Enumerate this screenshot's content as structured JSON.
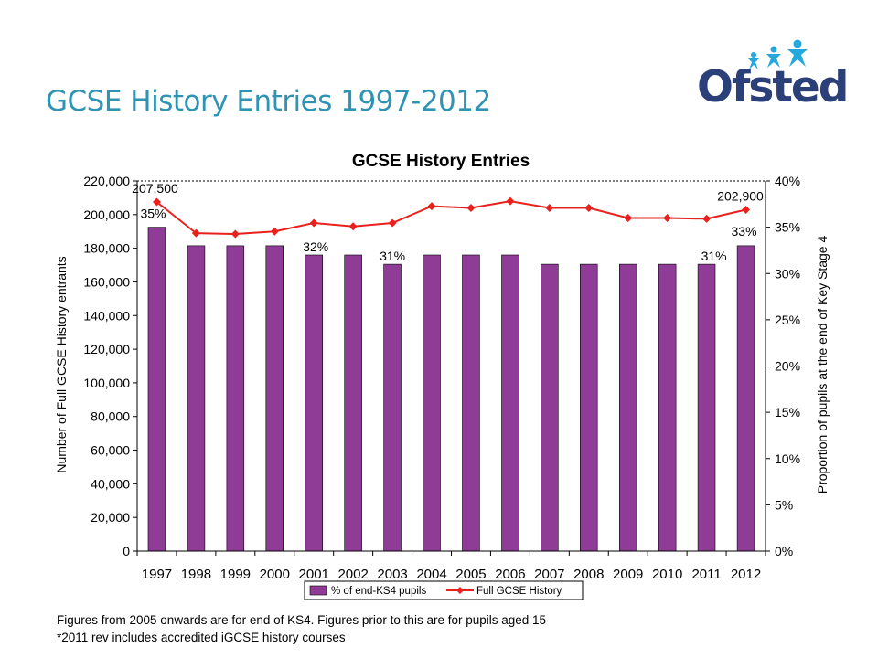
{
  "slide": {
    "title": "GCSE History Entries 1997-2012",
    "logo_text": "Ofsted",
    "footnotes": [
      "Figures from 2005 onwards are for end of KS4.  Figures prior to this are for pupils aged 15",
      "*2011 rev includes accredited iGCSE history courses"
    ]
  },
  "colors": {
    "title": "#2f93b4",
    "bar": "#8e3c96",
    "line": "#e8211c",
    "logo_navy": "#2b3f78",
    "logo_star": "#25a8dd"
  },
  "chart_data": {
    "type": "bar",
    "title": "GCSE History Entries",
    "categories": [
      "1997",
      "1998",
      "1999",
      "2000",
      "2001",
      "2002",
      "2003",
      "2004",
      "2005",
      "2006",
      "2007",
      "2008",
      "2009",
      "2010",
      "2011",
      "2012"
    ],
    "series": [
      {
        "name": "% of end-KS4 pupils",
        "type": "bar",
        "axis": "right",
        "values": [
          35,
          33,
          33,
          33,
          32,
          32,
          31,
          32,
          32,
          32,
          31,
          31,
          31,
          31,
          31,
          33
        ]
      },
      {
        "name": "Full GCSE History",
        "type": "line",
        "axis": "left",
        "values": [
          207500,
          189000,
          188500,
          190000,
          195000,
          193000,
          195000,
          205000,
          204000,
          208000,
          204000,
          204000,
          198000,
          198000,
          197500,
          202900
        ]
      }
    ],
    "ylabel_left": "Number of Full GCSE History entrants",
    "ylabel_right": "Proportion of pupils at the end of Key Stage 4",
    "ylim_left": [
      0,
      220000
    ],
    "ylim_right": [
      0,
      40
    ],
    "yticks_left": [
      "0",
      "20,000",
      "40,000",
      "60,000",
      "80,000",
      "100,000",
      "120,000",
      "140,000",
      "160,000",
      "180,000",
      "200,000",
      "220,000"
    ],
    "yticks_right": [
      "0%",
      "5%",
      "10%",
      "15%",
      "20%",
      "25%",
      "30%",
      "35%",
      "40%"
    ],
    "bar_labels": [
      {
        "index": 0,
        "text": "35%"
      },
      {
        "index": 4,
        "text": "32%"
      },
      {
        "index": 6,
        "text": "31%"
      },
      {
        "index": 14,
        "text": "31%"
      },
      {
        "index": 15,
        "text": "33%"
      }
    ],
    "line_labels": [
      {
        "index": 0,
        "text": "207,500"
      },
      {
        "index": 15,
        "text": "202,900"
      }
    ],
    "grid": "dashed horizontal at top",
    "legend": "bottom"
  }
}
